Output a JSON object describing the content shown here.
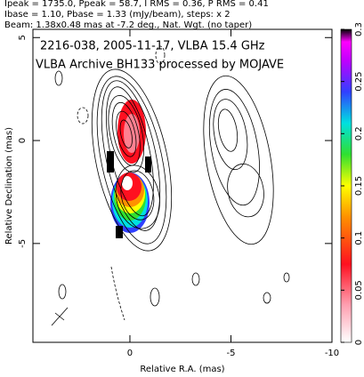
{
  "chart_data": {
    "type": "contour",
    "header": [
      "Ipeak = 1735.0, Ppeak = 58.7, I RMS = 0.36, P RMS = 0.41",
      "Ibase = 1.10, Pbase = 1.33 (mJy/beam), steps: x 2",
      "Beam: 1.38x0.48 mas at -7.2 deg., Nat. Wgt. (no taper)"
    ],
    "title": [
      "2216-038, 2005-11-17, VLBA 15.4 GHz",
      "VLBA Archive BH133 processed by MOJAVE"
    ],
    "xlabel": "Relative R.A. (mas)",
    "ylabel": "Relative Declination (mas)",
    "xlim": [
      4.8,
      -10
    ],
    "xticks": [
      0,
      -5,
      -10
    ],
    "ylim": [
      -9.8,
      5.4
    ],
    "yticks": [
      -5,
      0,
      5
    ],
    "clim": [
      0,
      0.3
    ],
    "cticks": [
      0,
      0.05,
      0.1,
      0.15,
      0.2,
      0.25,
      0.3
    ]
  }
}
